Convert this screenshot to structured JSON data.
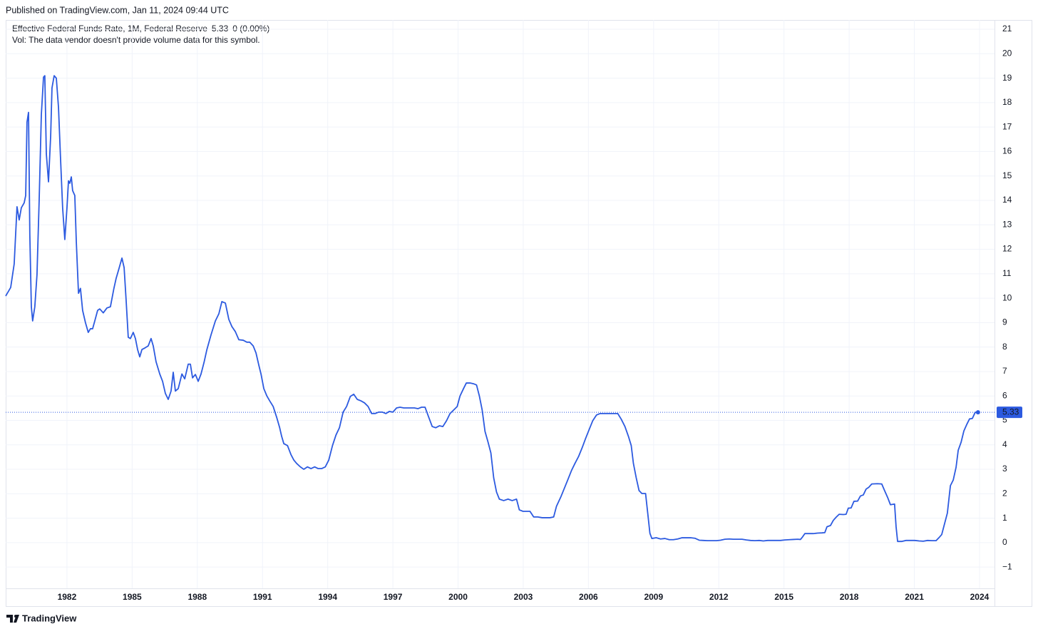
{
  "header": "Published on TradingView.com, Jan 11, 2024 09:44 UTC",
  "brand": "TradingView",
  "chart_data": {
    "type": "line",
    "legend_note": "Vol: The data vendor doesn't provide volume data for this symbol.",
    "last_value": 5.33,
    "change": "0 (0.00%)",
    "xlim": [
      1979.18,
      2024.69
    ],
    "xticks": [
      1982,
      1985,
      1988,
      1991,
      1994,
      1997,
      2000,
      2003,
      2006,
      2009,
      2012,
      2015,
      2018,
      2021,
      2024
    ],
    "ylim": [
      -1.87,
      21.38
    ],
    "yticks": [
      {
        "value": -1,
        "label": "−1"
      },
      0,
      1,
      2,
      3,
      4,
      5,
      6,
      7,
      8,
      9,
      10,
      11,
      12,
      13,
      14,
      15,
      16,
      17,
      18,
      19,
      20,
      21
    ],
    "grid": true,
    "x": [
      1979.18,
      1979.41,
      1979.57,
      1979.7,
      1979.8,
      1979.9,
      1980.03,
      1980.1,
      1980.16,
      1980.23,
      1980.29,
      1980.36,
      1980.42,
      1980.52,
      1980.62,
      1980.72,
      1980.82,
      1980.92,
      1980.98,
      1981.05,
      1981.15,
      1981.25,
      1981.31,
      1981.41,
      1981.51,
      1981.61,
      1981.7,
      1981.8,
      1981.9,
      1982.0,
      1982.07,
      1982.13,
      1982.2,
      1982.26,
      1982.36,
      1982.43,
      1982.53,
      1982.62,
      1982.72,
      1982.85,
      1982.98,
      1983.08,
      1983.18,
      1983.28,
      1983.41,
      1983.51,
      1983.67,
      1983.84,
      1984.0,
      1984.16,
      1984.26,
      1984.39,
      1984.53,
      1984.63,
      1984.72,
      1984.82,
      1984.92,
      1985.05,
      1985.15,
      1985.25,
      1985.35,
      1985.45,
      1985.58,
      1985.74,
      1985.87,
      1985.97,
      1986.1,
      1986.27,
      1986.4,
      1986.53,
      1986.66,
      1986.79,
      1986.89,
      1986.99,
      1987.12,
      1987.29,
      1987.42,
      1987.58,
      1987.68,
      1987.78,
      1987.91,
      1988.04,
      1988.17,
      1988.31,
      1988.44,
      1988.63,
      1988.83,
      1988.99,
      1989.13,
      1989.29,
      1989.45,
      1989.59,
      1989.75,
      1989.91,
      1990.11,
      1990.28,
      1990.41,
      1990.57,
      1990.7,
      1990.83,
      1990.93,
      1991.06,
      1991.2,
      1991.33,
      1991.49,
      1991.65,
      1991.79,
      1991.88,
      1991.98,
      1992.15,
      1992.31,
      1992.44,
      1992.57,
      1992.74,
      1992.9,
      1993.07,
      1993.23,
      1993.4,
      1993.56,
      1993.72,
      1993.89,
      1994.05,
      1994.22,
      1994.38,
      1994.54,
      1994.71,
      1994.87,
      1995.04,
      1995.2,
      1995.36,
      1995.53,
      1995.69,
      1995.86,
      1996.02,
      1996.18,
      1996.35,
      1996.51,
      1996.68,
      1996.84,
      1997.0,
      1997.17,
      1997.33,
      1997.5,
      1997.66,
      1997.82,
      1997.99,
      1998.15,
      1998.32,
      1998.48,
      1998.65,
      1998.81,
      1998.97,
      1999.14,
      1999.3,
      1999.47,
      1999.63,
      1999.79,
      1999.96,
      2000.09,
      2000.25,
      2000.38,
      2000.55,
      2000.71,
      2000.85,
      2000.98,
      2001.11,
      2001.24,
      2001.38,
      2001.51,
      2001.64,
      2001.77,
      2001.9,
      2002.1,
      2002.3,
      2002.49,
      2002.69,
      2002.82,
      2002.99,
      2003.15,
      2003.31,
      2003.48,
      2003.67,
      2003.87,
      2004.07,
      2004.23,
      2004.4,
      2004.53,
      2004.73,
      2004.89,
      2005.05,
      2005.22,
      2005.38,
      2005.55,
      2005.71,
      2005.87,
      2006.04,
      2006.2,
      2006.37,
      2006.53,
      2006.69,
      2007.02,
      2007.35,
      2007.51,
      2007.68,
      2007.84,
      2007.97,
      2008.07,
      2008.2,
      2008.33,
      2008.46,
      2008.63,
      2008.73,
      2008.83,
      2008.92,
      2009.12,
      2009.32,
      2009.52,
      2009.72,
      2009.91,
      2010.11,
      2010.31,
      2010.51,
      2010.7,
      2010.9,
      2011.1,
      2011.29,
      2011.49,
      2011.69,
      2011.89,
      2012.08,
      2012.28,
      2012.48,
      2012.67,
      2012.87,
      2013.07,
      2013.27,
      2013.46,
      2013.66,
      2013.86,
      2014.05,
      2014.25,
      2014.45,
      2014.65,
      2014.84,
      2015.04,
      2015.24,
      2015.43,
      2015.63,
      2015.76,
      2015.86,
      2015.96,
      2016.16,
      2016.35,
      2016.55,
      2016.75,
      2016.88,
      2016.98,
      2017.14,
      2017.27,
      2017.4,
      2017.54,
      2017.73,
      2017.86,
      2017.96,
      2018.09,
      2018.22,
      2018.39,
      2018.52,
      2018.65,
      2018.78,
      2018.91,
      2019.04,
      2019.3,
      2019.5,
      2019.63,
      2019.77,
      2019.9,
      2020.09,
      2020.16,
      2020.23,
      2020.43,
      2020.62,
      2020.82,
      2021.02,
      2021.22,
      2021.41,
      2021.61,
      2021.81,
      2022.0,
      2022.13,
      2022.26,
      2022.39,
      2022.52,
      2022.66,
      2022.79,
      2022.92,
      2023.02,
      2023.15,
      2023.28,
      2023.41,
      2023.54,
      2023.67,
      2023.8,
      2023.93
    ],
    "series": [
      {
        "name": "Effective Federal Funds Rate, 1M, Federal Reserve",
        "color": "#2c5ae0",
        "values": [
          10.09,
          10.44,
          11.4,
          13.74,
          13.2,
          13.7,
          13.9,
          14.2,
          17.2,
          17.6,
          12.6,
          9.65,
          9.07,
          9.65,
          10.96,
          14.0,
          17.5,
          19.04,
          19.1,
          15.9,
          14.76,
          16.65,
          18.6,
          19.1,
          19.0,
          17.8,
          15.8,
          13.7,
          12.4,
          13.7,
          14.8,
          14.7,
          14.96,
          14.4,
          14.2,
          12.3,
          10.2,
          10.4,
          9.5,
          9.0,
          8.6,
          8.75,
          8.75,
          9.07,
          9.5,
          9.56,
          9.4,
          9.6,
          9.65,
          10.4,
          10.8,
          11.2,
          11.64,
          11.25,
          9.95,
          8.4,
          8.35,
          8.6,
          8.35,
          7.9,
          7.6,
          7.9,
          7.96,
          8.05,
          8.35,
          8.05,
          7.4,
          6.9,
          6.6,
          6.1,
          5.86,
          6.2,
          6.97,
          6.2,
          6.3,
          6.9,
          6.7,
          7.3,
          7.3,
          6.74,
          6.88,
          6.6,
          6.9,
          7.38,
          7.9,
          8.5,
          9.07,
          9.36,
          9.86,
          9.8,
          9.13,
          8.84,
          8.63,
          8.3,
          8.28,
          8.2,
          8.2,
          8.05,
          7.76,
          7.26,
          6.9,
          6.3,
          6.0,
          5.8,
          5.57,
          5.13,
          4.7,
          4.35,
          4.05,
          3.97,
          3.6,
          3.38,
          3.24,
          3.1,
          3.0,
          3.1,
          3.03,
          3.1,
          3.03,
          3.03,
          3.1,
          3.38,
          3.97,
          4.4,
          4.7,
          5.34,
          5.57,
          5.98,
          6.07,
          5.86,
          5.8,
          5.72,
          5.57,
          5.28,
          5.28,
          5.34,
          5.34,
          5.28,
          5.37,
          5.34,
          5.51,
          5.54,
          5.51,
          5.51,
          5.51,
          5.51,
          5.48,
          5.54,
          5.54,
          5.13,
          4.75,
          4.7,
          4.78,
          4.75,
          4.99,
          5.28,
          5.42,
          5.57,
          6.0,
          6.3,
          6.53,
          6.53,
          6.5,
          6.45,
          6.0,
          5.42,
          4.55,
          4.11,
          3.67,
          2.65,
          2.07,
          1.78,
          1.72,
          1.78,
          1.72,
          1.78,
          1.34,
          1.28,
          1.28,
          1.28,
          1.05,
          1.05,
          1.02,
          1.02,
          1.02,
          1.05,
          1.49,
          1.87,
          2.22,
          2.57,
          2.95,
          3.24,
          3.53,
          3.88,
          4.26,
          4.64,
          4.99,
          5.22,
          5.28,
          5.28,
          5.28,
          5.28,
          5.05,
          4.75,
          4.35,
          3.97,
          3.24,
          2.65,
          2.13,
          2.01,
          2.01,
          1.2,
          0.38,
          0.17,
          0.2,
          0.15,
          0.17,
          0.12,
          0.12,
          0.15,
          0.2,
          0.2,
          0.2,
          0.18,
          0.1,
          0.09,
          0.08,
          0.08,
          0.08,
          0.1,
          0.14,
          0.15,
          0.14,
          0.14,
          0.14,
          0.11,
          0.09,
          0.08,
          0.09,
          0.07,
          0.09,
          0.09,
          0.09,
          0.09,
          0.11,
          0.12,
          0.13,
          0.14,
          0.13,
          0.24,
          0.37,
          0.37,
          0.37,
          0.39,
          0.4,
          0.41,
          0.65,
          0.7,
          0.91,
          1.04,
          1.16,
          1.15,
          1.16,
          1.41,
          1.42,
          1.69,
          1.7,
          1.91,
          1.95,
          2.19,
          2.27,
          2.4,
          2.41,
          2.4,
          2.13,
          1.85,
          1.55,
          1.58,
          0.65,
          0.05,
          0.05,
          0.09,
          0.09,
          0.09,
          0.07,
          0.06,
          0.09,
          0.08,
          0.08,
          0.2,
          0.33,
          0.77,
          1.21,
          2.33,
          2.56,
          3.08,
          3.78,
          4.1,
          4.57,
          4.83,
          5.06,
          5.08,
          5.33,
          5.33
        ]
      }
    ]
  }
}
